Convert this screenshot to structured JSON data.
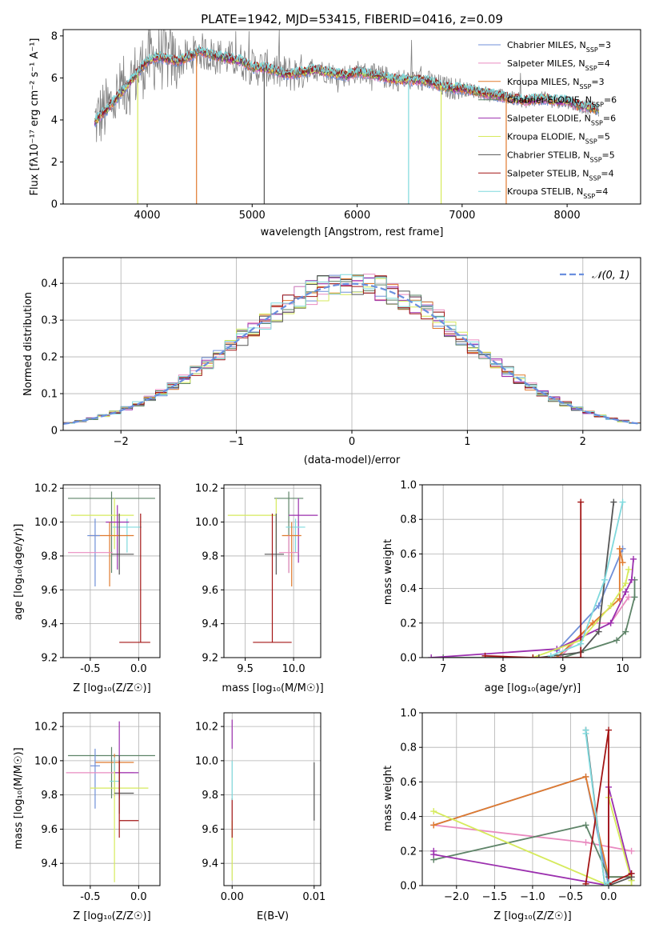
{
  "colors": {
    "Chabrier MILES": "#6f8fd8",
    "Salpeter MILES": "#e98bc0",
    "Kroupa MILES": "#e07a2e",
    "Chabrier ELODIE": "#5e8468",
    "Salpeter ELODIE": "#9b2fae",
    "Kroupa ELODIE": "#d6ea5c",
    "Chabrier STELIB": "#555555",
    "Salpeter STELIB": "#a31515",
    "Kroupa STELIB": "#7fd9dd",
    "gaussian": "#6a8fdf",
    "spectrum_gray": "#808080",
    "grid": "#b0b0b0"
  },
  "chart_data": [
    {
      "id": "spectrum",
      "type": "line",
      "title": "PLATE=1942, MJD=53415, FIBERID=0416, z=0.09",
      "xlabel": "wavelength [Angstrom, rest frame]",
      "ylabel": "Flux [fλ10⁻¹⁷ erg cm⁻² s⁻¹ A⁻¹]",
      "xlim": [
        3200,
        8700
      ],
      "ylim": [
        0,
        8.3
      ],
      "xticks": [
        4000,
        5000,
        6000,
        7000,
        8000
      ],
      "yticks": [
        0,
        2,
        4,
        6,
        8
      ],
      "grid": false,
      "legend_position": "right",
      "legend": [
        {
          "name": "Chabrier MILES",
          "nssp": "3"
        },
        {
          "name": "Salpeter MILES",
          "nssp": "4"
        },
        {
          "name": "Kroupa MILES",
          "nssp": "3"
        },
        {
          "name": "Chabrier ELODIE",
          "nssp": "6"
        },
        {
          "name": "Salpeter ELODIE",
          "nssp": "6"
        },
        {
          "name": "Kroupa ELODIE",
          "nssp": "5"
        },
        {
          "name": "Chabrier STELIB",
          "nssp": "5"
        },
        {
          "name": "Salpeter STELIB",
          "nssp": "4"
        },
        {
          "name": "Kroupa STELIB",
          "nssp": "4"
        }
      ],
      "continuum": {
        "x": [
          3500,
          3550,
          3620,
          3700,
          3800,
          3900,
          4000,
          4100,
          4200,
          4300,
          4400,
          4500,
          4600,
          4700,
          4800,
          4900,
          5000,
          5100,
          5200,
          5300,
          5400,
          5500,
          5600,
          5700,
          5800,
          5900,
          6000,
          6100,
          6200,
          6300,
          6400,
          6500,
          6600,
          6700,
          6800,
          6900,
          7000,
          7100,
          7200,
          7300,
          7400,
          7500,
          7600,
          7700,
          7800,
          7900,
          8000,
          8100,
          8200,
          8300
        ],
        "y": [
          3.9,
          4.2,
          4.5,
          5.0,
          5.6,
          6.2,
          6.8,
          7.0,
          6.9,
          6.8,
          7.0,
          7.3,
          7.1,
          7.0,
          6.9,
          6.8,
          6.5,
          6.5,
          6.4,
          6.2,
          6.2,
          6.3,
          6.4,
          6.3,
          6.2,
          6.1,
          6.3,
          6.2,
          6.1,
          6.0,
          5.9,
          5.9,
          5.9,
          5.8,
          5.6,
          5.5,
          5.5,
          5.4,
          5.3,
          5.2,
          5.1,
          5.0,
          4.9,
          5.0,
          5.0,
          4.9,
          4.9,
          4.7,
          4.6,
          4.5
        ]
      },
      "drops": [
        {
          "series": "Kroupa ELODIE",
          "x": 3910
        },
        {
          "series": "Kroupa MILES",
          "x": 4470
        },
        {
          "series": "Chabrier STELIB",
          "x": 5115
        },
        {
          "series": "Kroupa STELIB",
          "x": 6490
        },
        {
          "series": "Kroupa ELODIE",
          "x": 6800
        },
        {
          "series": "Kroupa MILES",
          "x": 7420
        }
      ]
    },
    {
      "id": "residuals",
      "type": "line",
      "xlabel": "(data-model)/error",
      "ylabel": "Normed distribution",
      "xlim": [
        -2.5,
        2.5
      ],
      "ylim": [
        0,
        0.47
      ],
      "xticks": [
        -2,
        -1,
        0,
        1,
        2
      ],
      "yticks": [
        0.0,
        0.1,
        0.2,
        0.3,
        0.4
      ],
      "grid": true,
      "legend_position": "top-right",
      "legend": [
        "𝒩(0, 1)"
      ],
      "bin_width": 0.1
    },
    {
      "id": "age_vs_Z",
      "type": "scatter",
      "xlabel": "Z [log₁₀(Z/Z☉)]",
      "ylabel": "age  [log₁₀(age/yr)]",
      "xlim": [
        -0.78,
        0.22
      ],
      "ylim": [
        9.2,
        10.22
      ],
      "xticks": [
        -0.5,
        0.0
      ],
      "yticks": [
        9.2,
        9.4,
        9.6,
        9.8,
        10.0,
        10.2
      ],
      "grid": true,
      "points": [
        {
          "series": "Chabrier ELODIE",
          "x": -0.28,
          "y": 10.14,
          "xerr": [
            0.45,
            0.45
          ],
          "yerr": [
            0.44,
            0.04
          ]
        },
        {
          "series": "Kroupa ELODIE",
          "x": -0.25,
          "y": 10.04,
          "xerr": [
            0.45,
            0.2
          ],
          "yerr": [
            0.2,
            0.1
          ]
        },
        {
          "series": "Kroupa STELIB",
          "x": -0.12,
          "y": 9.97,
          "xerr": [
            0.15,
            0.15
          ],
          "yerr": [
            0.15,
            0.05
          ]
        },
        {
          "series": "Salpeter ELODIE",
          "x": -0.22,
          "y": 10.0,
          "xerr": [
            0.12,
            0.12
          ],
          "yerr": [
            0.28,
            0.1
          ]
        },
        {
          "series": "Kroupa MILES",
          "x": -0.3,
          "y": 9.92,
          "xerr": [
            0.2,
            0.25
          ],
          "yerr": [
            0.3,
            0.08
          ]
        },
        {
          "series": "Chabrier MILES",
          "x": -0.45,
          "y": 9.92,
          "xerr": [
            0.08,
            0.05
          ],
          "yerr": [
            0.3,
            0.1
          ]
        },
        {
          "series": "Salpeter MILES",
          "x": -0.45,
          "y": 9.82,
          "xerr": [
            0.28,
            0.18
          ],
          "yerr": [
            0.0,
            0.0
          ]
        },
        {
          "series": "Chabrier STELIB",
          "x": -0.2,
          "y": 9.81,
          "xerr": [
            0.08,
            0.15
          ],
          "yerr": [
            0.12,
            0.24
          ]
        },
        {
          "series": "Salpeter STELIB",
          "x": 0.02,
          "y": 9.29,
          "xerr": [
            0.22,
            0.1
          ],
          "yerr": [
            0.0,
            0.76
          ]
        }
      ]
    },
    {
      "id": "age_vs_mass",
      "type": "scatter",
      "xlabel": "mass [log₁₀(M/M☉)]",
      "xlim": [
        9.28,
        10.28
      ],
      "ylim": [
        9.2,
        10.22
      ],
      "xticks": [
        9.5,
        10.0
      ],
      "yticks": [
        9.2,
        9.4,
        9.6,
        9.8,
        10.0,
        10.2
      ],
      "grid": true,
      "points": [
        {
          "series": "Chabrier ELODIE",
          "x": 9.95,
          "y": 10.14,
          "xerr": [
            0.15,
            0.15
          ],
          "yerr": [
            0.44,
            0.04
          ]
        },
        {
          "series": "Kroupa ELODIE",
          "x": 9.82,
          "y": 10.04,
          "xerr": [
            0.5,
            0.0
          ],
          "yerr": [
            0.2,
            0.1
          ]
        },
        {
          "series": "Salpeter ELODIE",
          "x": 10.05,
          "y": 10.04,
          "xerr": [
            0.1,
            0.2
          ],
          "yerr": [
            0.28,
            0.1
          ]
        },
        {
          "series": "Kroupa STELIB",
          "x": 10.02,
          "y": 9.97,
          "xerr": [
            0.1,
            0.1
          ],
          "yerr": [
            0.15,
            0.05
          ]
        },
        {
          "series": "Kroupa MILES",
          "x": 9.98,
          "y": 9.92,
          "xerr": [
            0.1,
            0.1
          ],
          "yerr": [
            0.3,
            0.08
          ]
        },
        {
          "series": "Salpeter MILES",
          "x": 9.95,
          "y": 9.82,
          "xerr": [
            0.1,
            0.1
          ],
          "yerr": [
            0.12,
            0.1
          ]
        },
        {
          "series": "Chabrier STELIB",
          "x": 9.82,
          "y": 9.81,
          "xerr": [
            0.12,
            0.08
          ],
          "yerr": [
            0.12,
            0.24
          ]
        },
        {
          "series": "Salpeter STELIB",
          "x": 9.78,
          "y": 9.29,
          "xerr": [
            0.2,
            0.2
          ],
          "yerr": [
            0.0,
            0.76
          ]
        }
      ]
    },
    {
      "id": "weights_vs_age",
      "type": "line",
      "xlabel": "age  [log₁₀(age/yr)]",
      "ylabel": "mass weight",
      "xlim": [
        6.65,
        10.3
      ],
      "ylim": [
        0,
        1.0
      ],
      "xticks": [
        7,
        8,
        9,
        10
      ],
      "yticks": [
        0.0,
        0.2,
        0.4,
        0.6,
        0.8,
        1.0
      ],
      "grid": true,
      "series": [
        {
          "name": "Chabrier MILES",
          "x": [
            8.9,
            9.6,
            10.0
          ],
          "y": [
            0.04,
            0.3,
            0.63
          ]
        },
        {
          "name": "Salpeter MILES",
          "x": [
            8.95,
            9.5,
            9.8,
            10.1
          ],
          "y": [
            0.0,
            0.2,
            0.2,
            0.35
          ]
        },
        {
          "name": "Kroupa MILES",
          "x": [
            8.9,
            9.5,
            9.95,
            9.95,
            10.0
          ],
          "y": [
            0.0,
            0.2,
            0.34,
            0.63,
            0.55
          ]
        },
        {
          "name": "Chabrier ELODIE",
          "x": [
            7.0,
            9.0,
            9.9,
            10.05,
            10.2,
            10.2
          ],
          "y": [
            0.0,
            0.0,
            0.1,
            0.15,
            0.35,
            0.45
          ]
        },
        {
          "name": "Salpeter ELODIE",
          "x": [
            6.8,
            8.9,
            9.8,
            10.05,
            10.15,
            10.18
          ],
          "y": [
            0.0,
            0.05,
            0.2,
            0.38,
            0.45,
            0.57
          ]
        },
        {
          "name": "Kroupa ELODIE",
          "x": [
            8.5,
            9.3,
            9.8,
            10.05,
            10.1
          ],
          "y": [
            0.0,
            0.1,
            0.3,
            0.43,
            0.51
          ]
        },
        {
          "name": "Chabrier STELIB",
          "x": [
            8.6,
            9.3,
            9.6,
            9.85
          ],
          "y": [
            0.0,
            0.03,
            0.15,
            0.9
          ]
        },
        {
          "name": "Salpeter STELIB",
          "x": [
            7.7,
            8.5,
            9.3,
            9.3
          ],
          "y": [
            0.01,
            0.0,
            0.0,
            0.9
          ]
        },
        {
          "name": "Kroupa STELIB",
          "x": [
            8.8,
            9.3,
            9.7,
            10.0
          ],
          "y": [
            0.01,
            0.08,
            0.45,
            0.9
          ]
        }
      ]
    },
    {
      "id": "mass_vs_Z",
      "type": "scatter",
      "xlabel": "Z [log₁₀(Z/Z☉)]",
      "ylabel": "mass [log₁₀(M/M☉)]",
      "xlim": [
        -0.78,
        0.22
      ],
      "ylim": [
        9.27,
        10.28
      ],
      "xticks": [
        -0.5,
        0.0
      ],
      "yticks": [
        9.4,
        9.6,
        9.8,
        10.0,
        10.2
      ],
      "grid": true,
      "points": [
        {
          "series": "Chabrier ELODIE",
          "x": -0.28,
          "y": 10.03,
          "xerr": [
            0.45,
            0.45
          ],
          "yerr": [
            0.25,
            0.05
          ]
        },
        {
          "series": "Kroupa MILES",
          "x": -0.25,
          "y": 9.99,
          "xerr": [
            0.2,
            0.2
          ],
          "yerr": [
            0.2,
            0.05
          ]
        },
        {
          "series": "Chabrier MILES",
          "x": -0.45,
          "y": 9.97,
          "xerr": [
            0.05,
            0.05
          ],
          "yerr": [
            0.25,
            0.1
          ]
        },
        {
          "series": "Salpeter MILES",
          "x": -0.4,
          "y": 9.93,
          "xerr": [
            0.35,
            0.35
          ],
          "yerr": [
            0.0,
            0.0
          ]
        },
        {
          "series": "Salpeter ELODIE",
          "x": -0.2,
          "y": 9.93,
          "xerr": [
            0.05,
            0.2
          ],
          "yerr": [
            0.15,
            0.3
          ]
        },
        {
          "series": "Kroupa STELIB",
          "x": -0.25,
          "y": 9.88,
          "xerr": [
            0.05,
            0.05
          ],
          "yerr": [
            0.08,
            0.14
          ]
        },
        {
          "series": "Kroupa ELODIE",
          "x": -0.25,
          "y": 9.84,
          "xerr": [
            0.25,
            0.35
          ],
          "yerr": [
            0.55,
            0.1
          ]
        },
        {
          "series": "Chabrier STELIB",
          "x": -0.2,
          "y": 9.81,
          "xerr": [
            0.05,
            0.15
          ],
          "yerr": [
            0.12,
            0.22
          ]
        },
        {
          "series": "Salpeter STELIB",
          "x": -0.2,
          "y": 9.65,
          "xerr": [
            0.0,
            0.2
          ],
          "yerr": [
            0.1,
            0.35
          ]
        }
      ]
    },
    {
      "id": "mass_vs_ebv",
      "type": "scatter",
      "xlabel": "E(B-V)",
      "xlim": [
        -0.001,
        0.0108
      ],
      "ylim": [
        9.27,
        10.28
      ],
      "xticks": [
        0.0,
        0.01
      ],
      "yticks": [
        9.4,
        9.6,
        9.8,
        10.0,
        10.2
      ],
      "grid": true,
      "points": [
        {
          "series": "Salpeter ELODIE",
          "x": 0.0,
          "y": 10.15,
          "yerr": [
            0.08,
            0.09
          ]
        },
        {
          "series": "Kroupa ELODIE",
          "x": 0.0,
          "y": 9.6,
          "yerr": [
            0.3,
            0.05
          ]
        },
        {
          "series": "Salpeter STELIB",
          "x": 0.0,
          "y": 9.68,
          "yerr": [
            0.13,
            0.1
          ]
        },
        {
          "series": "Kroupa STELIB",
          "x": 0.0,
          "y": 9.85,
          "yerr": [
            0.08,
            0.15
          ]
        },
        {
          "series": "Chabrier STELIB",
          "x": 0.01,
          "y": 9.82,
          "yerr": [
            0.17,
            0.17
          ]
        }
      ]
    },
    {
      "id": "weights_vs_Z",
      "type": "line",
      "xlabel": "Z [log₁₀(Z/Z☉)]",
      "ylabel": "mass weight",
      "xlim": [
        -2.45,
        0.42
      ],
      "ylim": [
        0,
        1.0
      ],
      "xticks": [
        -2.0,
        -1.5,
        -1.0,
        -0.5,
        0.0
      ],
      "yticks": [
        0.0,
        0.2,
        0.4,
        0.6,
        0.8,
        1.0
      ],
      "grid": true,
      "series": [
        {
          "name": "Chabrier MILES",
          "x": [
            -2.3,
            -0.3,
            0.0
          ],
          "y": [
            0.35,
            0.63,
            0.0
          ]
        },
        {
          "name": "Salpeter MILES",
          "x": [
            -2.3,
            -0.3,
            0.3
          ],
          "y": [
            0.35,
            0.25,
            0.2
          ]
        },
        {
          "name": "Kroupa MILES",
          "x": [
            -2.3,
            -0.3,
            0.0,
            0.3,
            0.3
          ],
          "y": [
            0.35,
            0.63,
            0.05,
            0.05,
            0.05
          ]
        },
        {
          "name": "Chabrier ELODIE",
          "x": [
            -2.3,
            -0.3,
            0.0,
            0.3,
            0.3
          ],
          "y": [
            0.15,
            0.35,
            0.05,
            0.05,
            0.03
          ]
        },
        {
          "name": "Salpeter ELODIE",
          "x": [
            -2.3,
            -2.3,
            0.0,
            0.0,
            0.3,
            0.3
          ],
          "y": [
            0.2,
            0.18,
            0.0,
            0.57,
            0.05,
            0.07
          ]
        },
        {
          "name": "Kroupa ELODIE",
          "x": [
            -2.3,
            0.0,
            0.3,
            0.3,
            0.0
          ],
          "y": [
            0.43,
            0.0,
            0.0,
            0.03,
            0.51
          ]
        },
        {
          "name": "Chabrier STELIB",
          "x": [
            -0.3,
            -0.05,
            0.0,
            0.3
          ],
          "y": [
            0.9,
            0.0,
            0.0,
            0.05
          ]
        },
        {
          "name": "Salpeter STELIB",
          "x": [
            -0.3,
            0.0,
            0.0,
            0.3
          ],
          "y": [
            0.01,
            0.9,
            0.01,
            0.07
          ]
        },
        {
          "name": "Kroupa STELIB",
          "x": [
            -0.3,
            -0.3,
            -0.05,
            0.0
          ],
          "y": [
            0.9,
            0.88,
            0.0,
            0.02
          ]
        }
      ]
    }
  ]
}
